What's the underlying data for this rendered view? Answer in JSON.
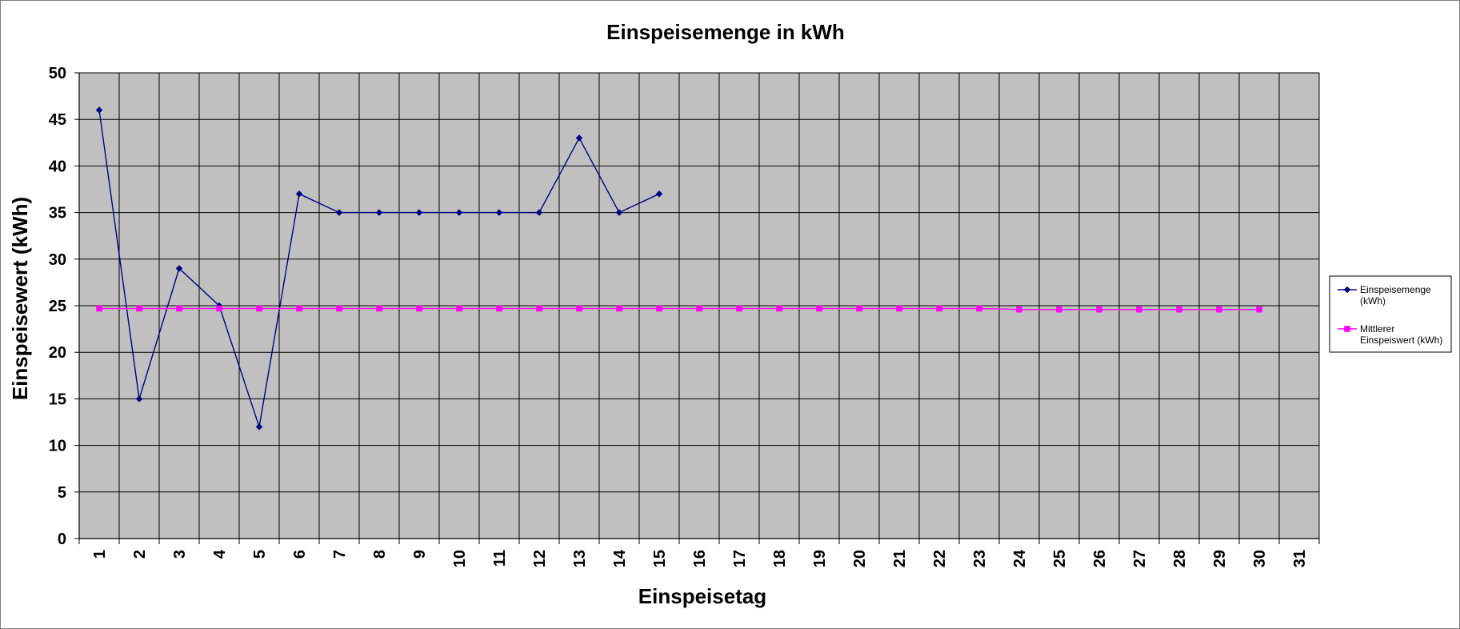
{
  "chart_data": {
    "type": "line",
    "title": "Einspeisemenge in kWh",
    "xlabel": "Einspeisetag",
    "ylabel": "Einspeisewert  (kWh)",
    "categories": [
      "1",
      "2",
      "3",
      "4",
      "5",
      "6",
      "7",
      "8",
      "9",
      "10",
      "11",
      "12",
      "13",
      "14",
      "15",
      "16",
      "17",
      "18",
      "19",
      "20",
      "21",
      "22",
      "23",
      "24",
      "25",
      "26",
      "27",
      "28",
      "29",
      "30",
      "31"
    ],
    "ylim": [
      0,
      50
    ],
    "ytick_step": 5,
    "grid": true,
    "legend_position": "right",
    "plot_background": "#c0c0c0",
    "series": [
      {
        "name": "Einspeisemenge (kWh)",
        "legend_lines": [
          "Einspeisemenge",
          "(kWh)"
        ],
        "color": "#000080",
        "marker": "diamond",
        "values": [
          46,
          15,
          29,
          25,
          12,
          37,
          35,
          35,
          35,
          35,
          35,
          35,
          43,
          35,
          37,
          null,
          null,
          null,
          null,
          null,
          null,
          null,
          null,
          null,
          null,
          null,
          null,
          null,
          null,
          null,
          null
        ]
      },
      {
        "name": "Mittlerer Einspeiswert (kWh)",
        "legend_lines": [
          "Mittlerer",
          "Einspeiswert (kWh)"
        ],
        "color": "#ff00ff",
        "marker": "square",
        "values": [
          24.7,
          24.7,
          24.7,
          24.7,
          24.7,
          24.7,
          24.7,
          24.7,
          24.7,
          24.7,
          24.7,
          24.7,
          24.7,
          24.7,
          24.7,
          24.7,
          24.7,
          24.7,
          24.7,
          24.7,
          24.7,
          24.7,
          24.7,
          24.6,
          24.6,
          24.6,
          24.6,
          24.6,
          24.6,
          24.6,
          null
        ]
      }
    ]
  }
}
